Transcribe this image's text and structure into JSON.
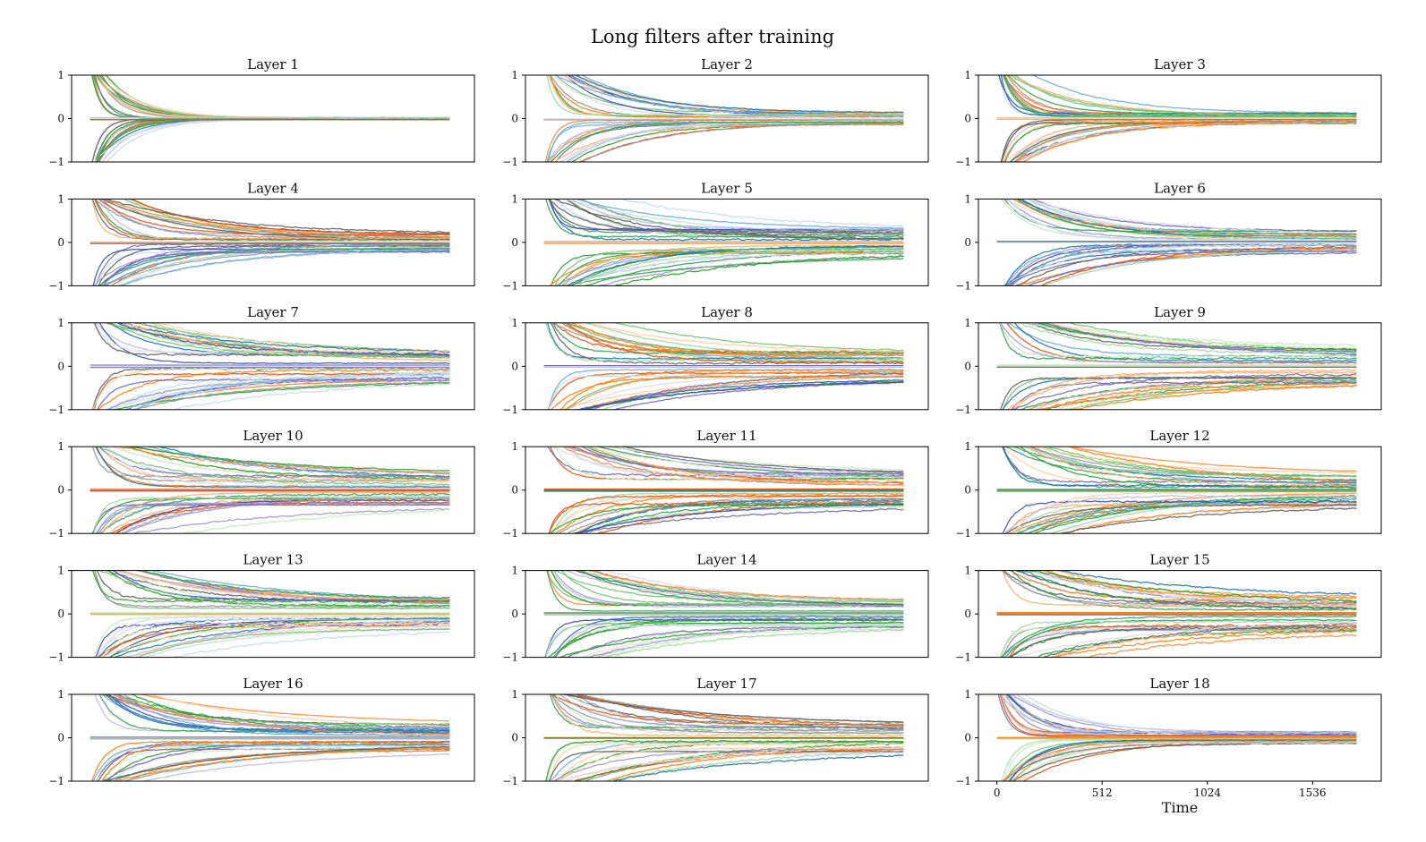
{
  "figure": {
    "title": "Long filters after training"
  },
  "chart_data": {
    "type": "line",
    "title": "Long filters after training",
    "layout": {
      "rows": 6,
      "cols": 3
    },
    "panels": [
      {
        "title": "Layer 1"
      },
      {
        "title": "Layer 2"
      },
      {
        "title": "Layer 3"
      },
      {
        "title": "Layer 4"
      },
      {
        "title": "Layer 5"
      },
      {
        "title": "Layer 6"
      },
      {
        "title": "Layer 7"
      },
      {
        "title": "Layer 8"
      },
      {
        "title": "Layer 9"
      },
      {
        "title": "Layer 10"
      },
      {
        "title": "Layer 11"
      },
      {
        "title": "Layer 12"
      },
      {
        "title": "Layer 13"
      },
      {
        "title": "Layer 14"
      },
      {
        "title": "Layer 15"
      },
      {
        "title": "Layer 16"
      },
      {
        "title": "Layer 17"
      },
      {
        "title": "Layer 18"
      }
    ],
    "xlim": [
      -90,
      1870
    ],
    "x_end": 1750,
    "ylim": [
      -1,
      1
    ],
    "yticks": [
      -1,
      0,
      1
    ],
    "ytick_labels": [
      "−1",
      "0",
      "1"
    ],
    "xticks": [
      0,
      512,
      1024,
      1536
    ],
    "xtick_labels": [
      "0",
      "512",
      "1024",
      "1536"
    ],
    "xlabel": "Time",
    "xaxis_panel": 17,
    "grid": false,
    "legend": "none",
    "palette": [
      "#1f77b4",
      "#ff7f0e",
      "#2ca02c",
      "#3b4cc0",
      "#e6550d",
      "#31a354",
      "#6baed6",
      "#fdae6b",
      "#74c476",
      "#9e9ac8",
      "#969696",
      "#756bb1",
      "#636363",
      "#fd8d3c",
      "#a1d99b",
      "#bcbddc",
      "#c6dbef",
      "#fdd0a2",
      "#c7e9c0",
      "#dadaeb"
    ],
    "final_spread": [
      0.02,
      0.15,
      0.12,
      0.22,
      0.3,
      0.25,
      0.33,
      0.32,
      0.4,
      0.36,
      0.36,
      0.34,
      0.34,
      0.32,
      0.38,
      0.3,
      0.32,
      0.13
    ]
  }
}
